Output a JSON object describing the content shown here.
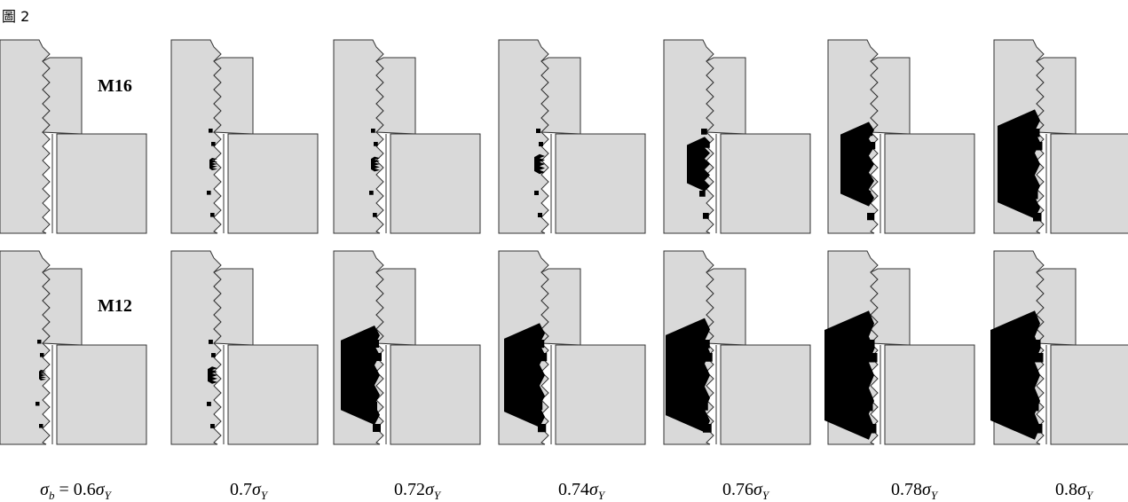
{
  "figure_label": "圖 2",
  "rows": [
    {
      "label": "M16"
    },
    {
      "label": "M12"
    }
  ],
  "columns": [
    {
      "label": [
        {
          "text": "σ"
        },
        {
          "sub": "b"
        },
        {
          "text": " = 0.6"
        },
        {
          "text": "σ"
        },
        {
          "sub": "Y"
        }
      ]
    },
    {
      "label": [
        {
          "text": "0.7"
        },
        {
          "text": "σ"
        },
        {
          "sub": "Y"
        }
      ]
    },
    {
      "label": [
        {
          "text": "0.72"
        },
        {
          "text": "σ"
        },
        {
          "sub": "Y"
        }
      ]
    },
    {
      "label": [
        {
          "text": "0.74"
        },
        {
          "text": "σ"
        },
        {
          "sub": "Y"
        }
      ]
    },
    {
      "label": [
        {
          "text": "0.76"
        },
        {
          "text": "σ"
        },
        {
          "sub": "Y"
        }
      ]
    },
    {
      "label": [
        {
          "text": "0.78"
        },
        {
          "text": "σ"
        },
        {
          "sub": "Y"
        }
      ]
    },
    {
      "label": [
        {
          "text": "0.8"
        },
        {
          "text": "σ"
        },
        {
          "sub": "Y"
        }
      ]
    }
  ]
}
